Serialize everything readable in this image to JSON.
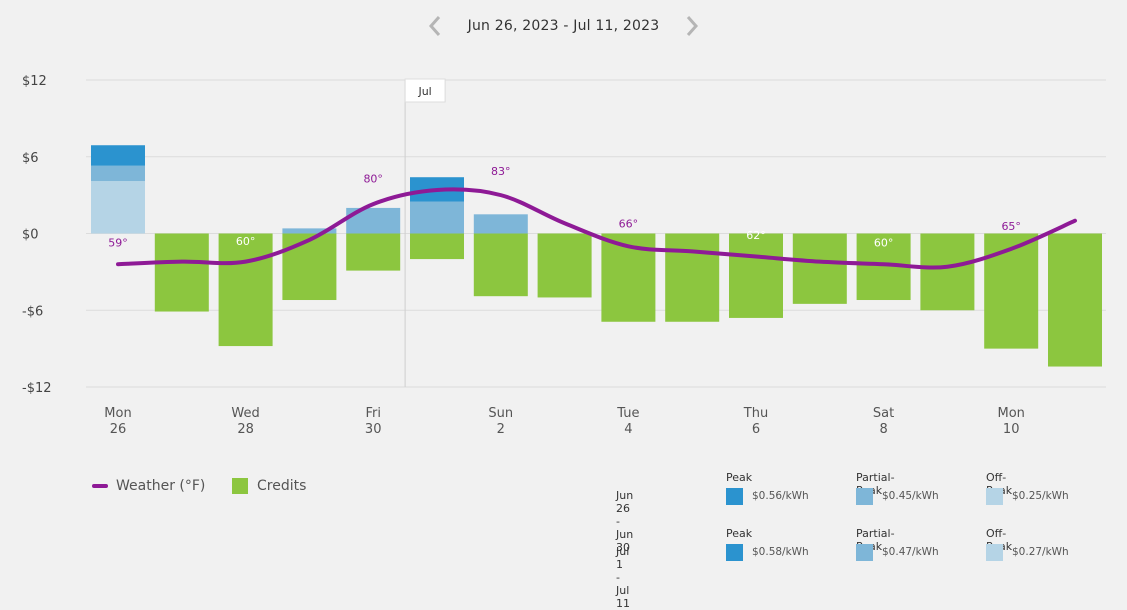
{
  "header": {
    "date_range": "Jun 26, 2023 - Jul 11, 2023",
    "prev_icon": "chevron-left-icon",
    "next_icon": "chevron-right-icon"
  },
  "colors": {
    "peak": "#2b93cf",
    "partial_peak": "#7eb6d8",
    "off_peak": "#b5d4e6",
    "credits": "#8cc63f",
    "weather": "#8e1a96",
    "grid": "#dcdcdc"
  },
  "chart_data": {
    "type": "bar",
    "y_ticks": [
      "$12",
      "$6",
      "$0",
      "-$6",
      "-$12"
    ],
    "y_tick_values": [
      12,
      6,
      0,
      -6,
      -12
    ],
    "ylim": [
      -12,
      12
    ],
    "month_marker": {
      "label": "Jul",
      "between_day_index": [
        4,
        5
      ]
    },
    "x_labels": [
      {
        "day": "Mon",
        "date": "26",
        "index": 0
      },
      {
        "day": "Wed",
        "date": "28",
        "index": 2
      },
      {
        "day": "Fri",
        "date": "30",
        "index": 4
      },
      {
        "day": "Sun",
        "date": "2",
        "index": 6
      },
      {
        "day": "Tue",
        "date": "4",
        "index": 8
      },
      {
        "day": "Thu",
        "date": "6",
        "index": 10
      },
      {
        "day": "Sat",
        "date": "8",
        "index": 12
      },
      {
        "day": "Mon",
        "date": "10",
        "index": 14
      }
    ],
    "days": [
      {
        "date": "Jun 26",
        "off_peak": 4.1,
        "partial_peak": 1.2,
        "peak": 1.6,
        "credits": 0
      },
      {
        "date": "Jun 27",
        "off_peak": 0,
        "partial_peak": 0,
        "peak": 0,
        "credits": -6.1
      },
      {
        "date": "Jun 28",
        "off_peak": 0,
        "partial_peak": 0,
        "peak": 0,
        "credits": -8.8
      },
      {
        "date": "Jun 29",
        "off_peak": 0,
        "partial_peak": 0.4,
        "peak": 0,
        "credits": -5.2
      },
      {
        "date": "Jun 30",
        "off_peak": 0,
        "partial_peak": 2.0,
        "peak": 0,
        "credits": -2.9
      },
      {
        "date": "Jul 1",
        "off_peak": 0,
        "partial_peak": 2.5,
        "peak": 1.9,
        "credits": -2.0
      },
      {
        "date": "Jul 2",
        "off_peak": 0,
        "partial_peak": 1.5,
        "peak": 0,
        "credits": -4.9
      },
      {
        "date": "Jul 3",
        "off_peak": 0,
        "partial_peak": 0,
        "peak": 0,
        "credits": -5.0
      },
      {
        "date": "Jul 4",
        "off_peak": 0,
        "partial_peak": 0,
        "peak": 0,
        "credits": -6.9
      },
      {
        "date": "Jul 5",
        "off_peak": 0,
        "partial_peak": 0,
        "peak": 0,
        "credits": -6.9
      },
      {
        "date": "Jul 6",
        "off_peak": 0,
        "partial_peak": 0,
        "peak": 0,
        "credits": -6.6
      },
      {
        "date": "Jul 7",
        "off_peak": 0,
        "partial_peak": 0,
        "peak": 0,
        "credits": -5.5
      },
      {
        "date": "Jul 8",
        "off_peak": 0,
        "partial_peak": 0,
        "peak": 0,
        "credits": -5.2
      },
      {
        "date": "Jul 9",
        "off_peak": 0,
        "partial_peak": 0,
        "peak": 0,
        "credits": -6.0
      },
      {
        "date": "Jul 10",
        "off_peak": 0,
        "partial_peak": 0,
        "peak": 0,
        "credits": -9.0
      },
      {
        "date": "Jul 11",
        "off_peak": 0,
        "partial_peak": 0,
        "peak": 0,
        "credits": -10.4
      }
    ],
    "weather_line_y": [
      -2.4,
      -2.2,
      -2.2,
      -0.5,
      2.3,
      3.4,
      3.0,
      0.8,
      -1.0,
      -1.4,
      -1.8,
      -2.2,
      -2.4,
      -2.6,
      -1.2,
      1.0
    ],
    "weather_labels": [
      {
        "text": "59°",
        "day_index": 0,
        "y": -0.7
      },
      {
        "text": "60°",
        "day_index": 2,
        "y": -0.6
      },
      {
        "text": "80°",
        "day_index": 4,
        "y": 4.3
      },
      {
        "text": "83°",
        "day_index": 6,
        "y": 4.9
      },
      {
        "text": "66°",
        "day_index": 8,
        "y": 0.8
      },
      {
        "text": "62°",
        "day_index": 10,
        "y": -0.1
      },
      {
        "text": "60°",
        "day_index": 12,
        "y": -0.7
      },
      {
        "text": "65°",
        "day_index": 14,
        "y": 0.6
      }
    ]
  },
  "legend": {
    "weather_label": "Weather (°F)",
    "credits_label": "Credits"
  },
  "rates": [
    {
      "period": "Jun 26 - Jun 30",
      "items": [
        {
          "name": "Peak",
          "price": "$0.56/kWh",
          "tier": "peak"
        },
        {
          "name": "Partial-Peak",
          "price": "$0.45/kWh",
          "tier": "partial_peak"
        },
        {
          "name": "Off-Peak",
          "price": "$0.25/kWh",
          "tier": "off_peak"
        }
      ]
    },
    {
      "period": "Jul 1 - Jul 11",
      "items": [
        {
          "name": "Peak",
          "price": "$0.58/kWh",
          "tier": "peak"
        },
        {
          "name": "Partial-Peak",
          "price": "$0.47/kWh",
          "tier": "partial_peak"
        },
        {
          "name": "Off-Peak",
          "price": "$0.27/kWh",
          "tier": "off_peak"
        }
      ]
    }
  ]
}
